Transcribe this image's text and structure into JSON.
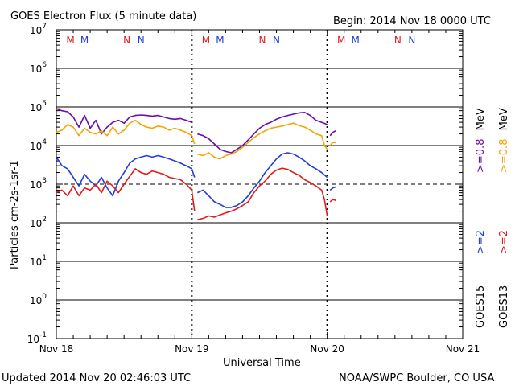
{
  "header": {
    "title": "GOES Electron Flux (5 minute data)",
    "begin": "Begin: 2014 Nov 18 0000 UTC"
  },
  "footer": {
    "updated": "Updated 2014 Nov 20 02:46:03 UTC",
    "credit": "NOAA/SWPC Boulder, CO USA"
  },
  "colors": {
    "goes15_08": "#6a0dad",
    "goes13_08": "#f5a300",
    "goes15_2": "#1f3fd8",
    "goes13_2": "#e01b1b",
    "marker_red": "#e01b1b",
    "marker_blue": "#1f3fd8"
  },
  "chart_data": {
    "type": "line",
    "title": "GOES Electron Flux (5 minute data)",
    "xlabel": "Universal Time",
    "ylabel": "Particles cm-2s-1sr-1",
    "xlim": [
      0,
      72
    ],
    "x_unit": "hours since 2014 Nov 18 0000 UTC",
    "x_ticks": [
      {
        "x": 0,
        "label": "Nov 18"
      },
      {
        "x": 24,
        "label": "Nov 19"
      },
      {
        "x": 48,
        "label": "Nov 20"
      },
      {
        "x": 72,
        "label": "Nov 21"
      }
    ],
    "y_scale": "log",
    "ylim": [
      0.1,
      10000000
    ],
    "y_ticks": [
      {
        "v": 0.1,
        "base": "10",
        "exp": "-1"
      },
      {
        "v": 1,
        "base": "10",
        "exp": "0"
      },
      {
        "v": 10,
        "base": "10",
        "exp": "1"
      },
      {
        "v": 100,
        "base": "10",
        "exp": "2"
      },
      {
        "v": 1000,
        "base": "10",
        "exp": "3"
      },
      {
        "v": 10000,
        "base": "10",
        "exp": "4"
      },
      {
        "v": 100000,
        "base": "10",
        "exp": "5"
      },
      {
        "v": 1000000,
        "base": "10",
        "exp": "6"
      },
      {
        "v": 10000000,
        "base": "10",
        "exp": "7"
      }
    ],
    "threshold": 1000,
    "day_markers": [
      {
        "x": 2.5,
        "label": "M",
        "color": "red"
      },
      {
        "x": 5.0,
        "label": "M",
        "color": "blue"
      },
      {
        "x": 12.5,
        "label": "N",
        "color": "red"
      },
      {
        "x": 15.0,
        "label": "N",
        "color": "blue"
      },
      {
        "x": 26.5,
        "label": "M",
        "color": "red"
      },
      {
        "x": 29.0,
        "label": "M",
        "color": "blue"
      },
      {
        "x": 36.5,
        "label": "N",
        "color": "red"
      },
      {
        "x": 39.0,
        "label": "N",
        "color": "blue"
      },
      {
        "x": 50.5,
        "label": "M",
        "color": "red"
      },
      {
        "x": 53.0,
        "label": "M",
        "color": "blue"
      },
      {
        "x": 60.5,
        "label": "N",
        "color": "red"
      },
      {
        "x": 63.0,
        "label": "N",
        "color": "blue"
      }
    ],
    "legend": {
      "goes15": {
        "sat": "GOES15",
        "e2": ">=2",
        "e08": ">=0.8",
        "unit": "MeV"
      },
      "goes13": {
        "sat": "GOES13",
        "e2": ">=2",
        "e08": ">=0.8",
        "unit": "MeV"
      }
    },
    "series": [
      {
        "name": "GOES15 >=0.8 MeV",
        "color": "#6a0dad",
        "segments": [
          [
            [
              0,
              90000
            ],
            [
              1,
              80000
            ],
            [
              2,
              75000
            ],
            [
              3,
              55000
            ],
            [
              4,
              30000
            ],
            [
              5,
              60000
            ],
            [
              6,
              28000
            ],
            [
              7,
              45000
            ],
            [
              8,
              20000
            ],
            [
              9,
              30000
            ],
            [
              10,
              40000
            ],
            [
              11,
              45000
            ],
            [
              12,
              38000
            ],
            [
              13,
              55000
            ],
            [
              14,
              60000
            ],
            [
              15,
              62000
            ],
            [
              16,
              60000
            ],
            [
              17,
              58000
            ],
            [
              18,
              60000
            ],
            [
              19,
              55000
            ],
            [
              20,
              50000
            ],
            [
              21,
              48000
            ],
            [
              22,
              50000
            ],
            [
              23,
              45000
            ],
            [
              24,
              40000
            ]
          ],
          [
            [
              25,
              20000
            ],
            [
              26,
              18000
            ],
            [
              27,
              15000
            ],
            [
              28,
              11000
            ],
            [
              29,
              8000
            ],
            [
              30,
              7000
            ],
            [
              31,
              6500
            ],
            [
              32,
              8000
            ],
            [
              33,
              10000
            ],
            [
              34,
              14000
            ],
            [
              35,
              20000
            ],
            [
              36,
              28000
            ],
            [
              37,
              35000
            ],
            [
              38,
              40000
            ],
            [
              39,
              48000
            ],
            [
              40,
              55000
            ],
            [
              41,
              60000
            ],
            [
              42,
              65000
            ],
            [
              43,
              70000
            ],
            [
              44,
              72000
            ],
            [
              45,
              60000
            ],
            [
              46,
              45000
            ],
            [
              47,
              40000
            ],
            [
              48,
              35000
            ]
          ],
          [
            [
              48.5,
              18000
            ],
            [
              49,
              22000
            ],
            [
              49.5,
              24000
            ]
          ]
        ]
      },
      {
        "name": "GOES13 >=0.8 MeV",
        "color": "#f5a300",
        "segments": [
          [
            [
              0,
              22000
            ],
            [
              1,
              25000
            ],
            [
              2,
              35000
            ],
            [
              3,
              30000
            ],
            [
              4,
              18000
            ],
            [
              5,
              28000
            ],
            [
              6,
              22000
            ],
            [
              7,
              20000
            ],
            [
              8,
              24000
            ],
            [
              9,
              18000
            ],
            [
              10,
              30000
            ],
            [
              11,
              20000
            ],
            [
              12,
              25000
            ],
            [
              13,
              38000
            ],
            [
              14,
              45000
            ],
            [
              15,
              35000
            ],
            [
              16,
              30000
            ],
            [
              17,
              28000
            ],
            [
              18,
              32000
            ],
            [
              19,
              30000
            ],
            [
              20,
              25000
            ],
            [
              21,
              28000
            ],
            [
              22,
              25000
            ],
            [
              23,
              22000
            ],
            [
              24,
              18000
            ],
            [
              24.5,
              11000
            ]
          ],
          [
            [
              25,
              6000
            ],
            [
              26,
              5500
            ],
            [
              27,
              6500
            ],
            [
              28,
              5000
            ],
            [
              29,
              4500
            ],
            [
              30,
              5500
            ],
            [
              31,
              6000
            ],
            [
              32,
              7000
            ],
            [
              33,
              9000
            ],
            [
              34,
              12000
            ],
            [
              35,
              16000
            ],
            [
              36,
              20000
            ],
            [
              37,
              24000
            ],
            [
              38,
              28000
            ],
            [
              39,
              30000
            ],
            [
              40,
              32000
            ],
            [
              41,
              35000
            ],
            [
              42,
              38000
            ],
            [
              43,
              33000
            ],
            [
              44,
              30000
            ],
            [
              45,
              25000
            ],
            [
              46,
              20000
            ],
            [
              47,
              18000
            ],
            [
              47.5,
              10000
            ],
            [
              48,
              8000
            ]
          ],
          [
            [
              48.5,
              10000
            ],
            [
              49,
              12000
            ],
            [
              49.5,
              12000
            ]
          ]
        ]
      },
      {
        "name": "GOES15 >=2 MeV",
        "color": "#1f3fd8",
        "segments": [
          [
            [
              0,
              5000
            ],
            [
              1,
              3000
            ],
            [
              2,
              2500
            ],
            [
              3,
              1500
            ],
            [
              4,
              900
            ],
            [
              5,
              1800
            ],
            [
              6,
              1200
            ],
            [
              7,
              900
            ],
            [
              8,
              1500
            ],
            [
              9,
              800
            ],
            [
              10,
              500
            ],
            [
              11,
              1200
            ],
            [
              12,
              2000
            ],
            [
              13,
              3500
            ],
            [
              14,
              4500
            ],
            [
              15,
              5000
            ],
            [
              16,
              5500
            ],
            [
              17,
              5000
            ],
            [
              18,
              5500
            ],
            [
              19,
              5000
            ],
            [
              20,
              4500
            ],
            [
              21,
              4000
            ],
            [
              22,
              3500
            ],
            [
              23,
              3000
            ],
            [
              24,
              2500
            ],
            [
              24.5,
              1500
            ]
          ],
          [
            [
              25,
              600
            ],
            [
              26,
              700
            ],
            [
              27,
              500
            ],
            [
              28,
              350
            ],
            [
              29,
              300
            ],
            [
              30,
              250
            ],
            [
              31,
              250
            ],
            [
              32,
              280
            ],
            [
              33,
              350
            ],
            [
              34,
              500
            ],
            [
              35,
              800
            ],
            [
              36,
              1200
            ],
            [
              37,
              2000
            ],
            [
              38,
              3000
            ],
            [
              39,
              4500
            ],
            [
              40,
              6000
            ],
            [
              41,
              6500
            ],
            [
              42,
              6000
            ],
            [
              43,
              5000
            ],
            [
              44,
              4000
            ],
            [
              45,
              3000
            ],
            [
              46,
              2500
            ],
            [
              47,
              2000
            ],
            [
              48,
              1500
            ]
          ],
          [
            [
              48.5,
              700
            ],
            [
              49,
              800
            ],
            [
              49.5,
              850
            ]
          ]
        ]
      },
      {
        "name": "GOES13 >=2 MeV",
        "color": "#e01b1b",
        "segments": [
          [
            [
              0,
              600
            ],
            [
              1,
              700
            ],
            [
              2,
              500
            ],
            [
              3,
              900
            ],
            [
              4,
              500
            ],
            [
              5,
              800
            ],
            [
              6,
              700
            ],
            [
              7,
              1000
            ],
            [
              8,
              600
            ],
            [
              9,
              1200
            ],
            [
              10,
              900
            ],
            [
              11,
              600
            ],
            [
              12,
              1000
            ],
            [
              13,
              1600
            ],
            [
              14,
              2500
            ],
            [
              15,
              2000
            ],
            [
              16,
              1800
            ],
            [
              17,
              2200
            ],
            [
              18,
              2000
            ],
            [
              19,
              1800
            ],
            [
              20,
              1500
            ],
            [
              21,
              1400
            ],
            [
              22,
              1300
            ],
            [
              23,
              1000
            ],
            [
              24,
              700
            ],
            [
              24.5,
              200
            ]
          ],
          [
            [
              25,
              120
            ],
            [
              26,
              130
            ],
            [
              27,
              150
            ],
            [
              28,
              140
            ],
            [
              29,
              160
            ],
            [
              30,
              180
            ],
            [
              31,
              200
            ],
            [
              32,
              230
            ],
            [
              33,
              280
            ],
            [
              34,
              350
            ],
            [
              35,
              600
            ],
            [
              36,
              900
            ],
            [
              37,
              1200
            ],
            [
              38,
              1800
            ],
            [
              39,
              2300
            ],
            [
              40,
              2600
            ],
            [
              41,
              2400
            ],
            [
              42,
              2000
            ],
            [
              43,
              1700
            ],
            [
              44,
              1300
            ],
            [
              45,
              1100
            ],
            [
              46,
              900
            ],
            [
              47,
              700
            ],
            [
              47.5,
              400
            ],
            [
              48,
              150
            ]
          ],
          [
            [
              48.5,
              350
            ],
            [
              49,
              400
            ],
            [
              49.5,
              380
            ]
          ]
        ]
      }
    ]
  }
}
